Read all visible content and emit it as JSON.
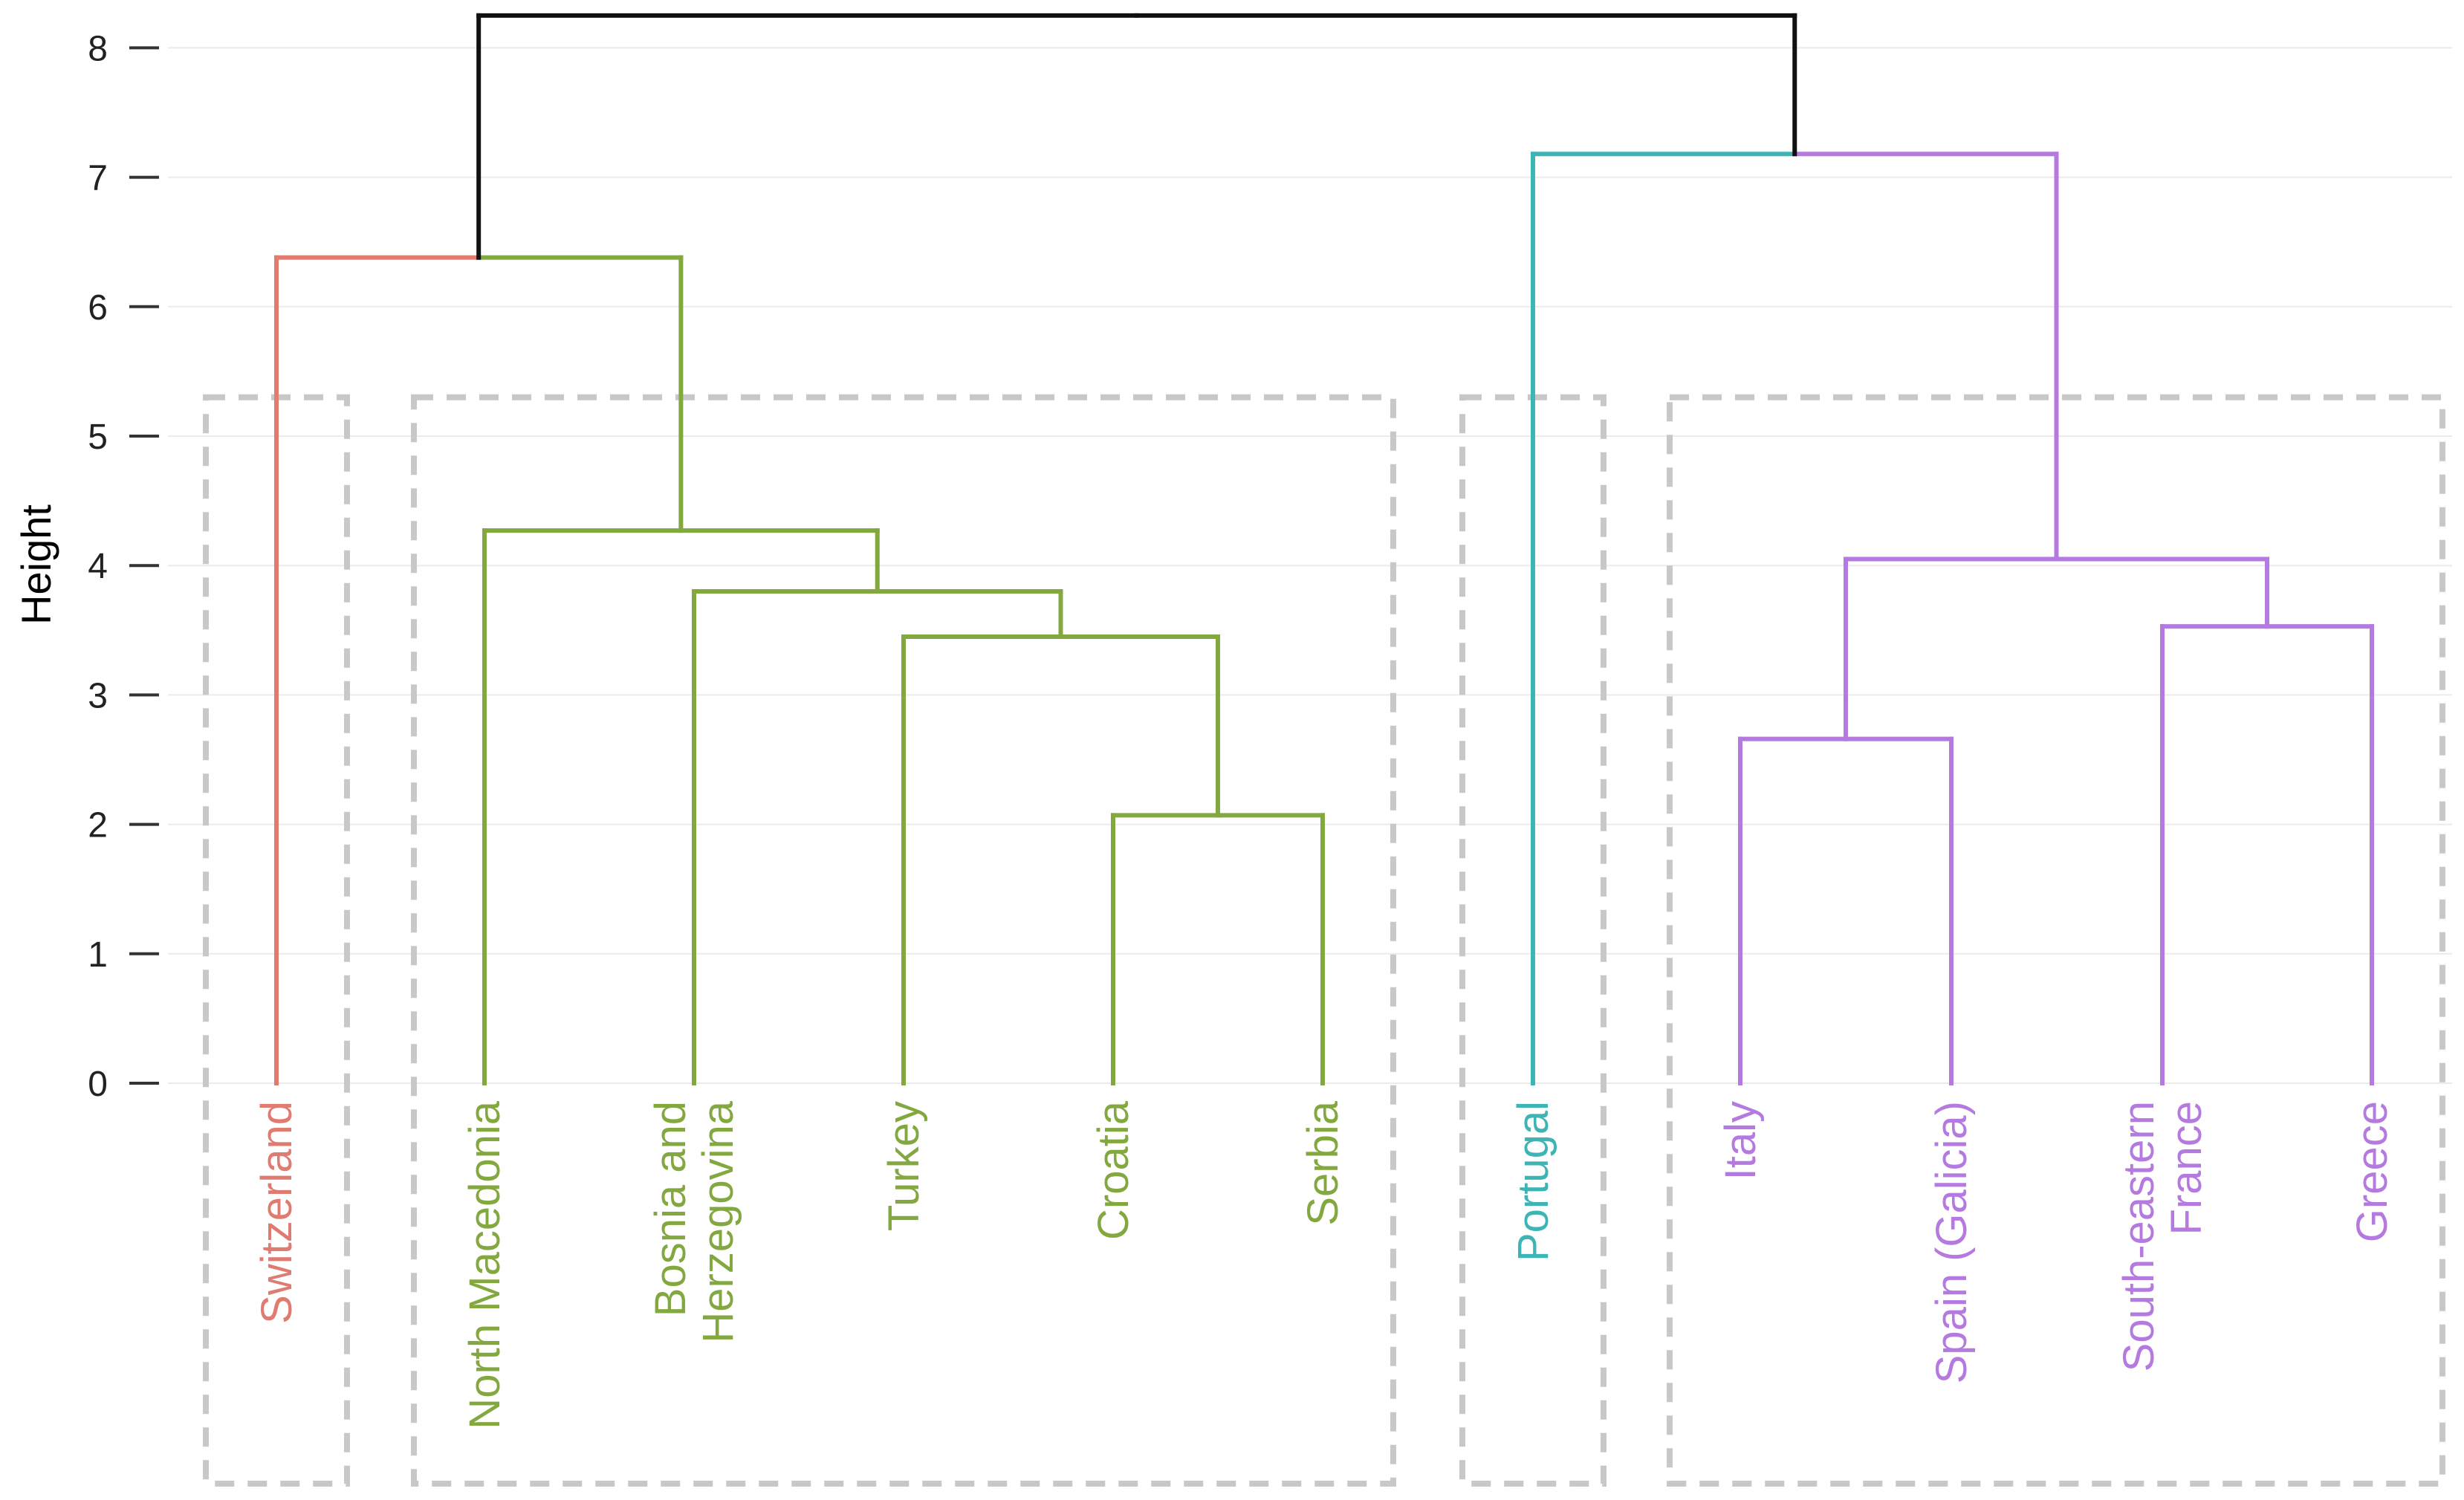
{
  "chart_data": {
    "type": "dendrogram",
    "title": "",
    "xlabel": "",
    "ylabel": "Height",
    "ylim": [
      0,
      8.25
    ],
    "yticks": [
      0,
      1,
      2,
      3,
      4,
      5,
      6,
      7,
      8
    ],
    "grid": true,
    "colors": {
      "Switzerland": "#e07b72",
      "group2": "#84a840",
      "Portugal": "#3fb4b4",
      "group4": "#b57ae0",
      "root": "#111111",
      "cluster_box": "#c8c8c8"
    },
    "leaves": [
      {
        "name": "Switzerland",
        "lines": [
          "Switzerland"
        ],
        "cluster": 1
      },
      {
        "name": "North Macedonia",
        "lines": [
          "North Macedonia"
        ],
        "cluster": 2
      },
      {
        "name": "Bosnia and Herzegovina",
        "lines": [
          "Bosnia and",
          "Herzegovina"
        ],
        "cluster": 2
      },
      {
        "name": "Turkey",
        "lines": [
          "Turkey"
        ],
        "cluster": 2
      },
      {
        "name": "Croatia",
        "lines": [
          "Croatia"
        ],
        "cluster": 2
      },
      {
        "name": "Serbia",
        "lines": [
          "Serbia"
        ],
        "cluster": 2
      },
      {
        "name": "Portugal",
        "lines": [
          "Portugal"
        ],
        "cluster": 3
      },
      {
        "name": "Italy",
        "lines": [
          "Italy"
        ],
        "cluster": 4
      },
      {
        "name": "Spain (Galicia)",
        "lines": [
          "Spain (Galicia)"
        ],
        "cluster": 4
      },
      {
        "name": "South-eastern France",
        "lines": [
          "South-eastern",
          "France"
        ],
        "cluster": 4
      },
      {
        "name": "Greece",
        "lines": [
          "Greece"
        ],
        "cluster": 4
      }
    ],
    "merges": [
      {
        "left": "Croatia",
        "right": "Serbia",
        "height": 2.07,
        "color": "group2"
      },
      {
        "left": "Turkey",
        "right": "Croatia+Serbia",
        "height": 3.45,
        "color": "group2"
      },
      {
        "left": "Bosnia and Herzegovina",
        "right": "Turkey+Croatia+Serbia",
        "height": 3.8,
        "color": "group2"
      },
      {
        "left": "North Macedonia",
        "right": "Bosnia..Serbia",
        "height": 4.27,
        "color": "group2"
      },
      {
        "left": "Switzerland",
        "right": "North Macedonia..Serbia",
        "height": 6.38,
        "color": "mixed"
      },
      {
        "left": "Italy",
        "right": "Spain (Galicia)",
        "height": 2.66,
        "color": "group4"
      },
      {
        "left": "South-eastern France",
        "right": "Greece",
        "height": 3.53,
        "color": "group4"
      },
      {
        "left": "Italy+Spain",
        "right": "France+Greece",
        "height": 4.05,
        "color": "group4"
      },
      {
        "left": "Portugal",
        "right": "Italy..Greece",
        "height": 7.18,
        "color": "mixed"
      },
      {
        "left": "Switzerland..Serbia",
        "right": "Portugal..Greece",
        "height": 8.25,
        "color": "root"
      }
    ],
    "clusters": [
      {
        "id": 1,
        "members": [
          "Switzerland"
        ]
      },
      {
        "id": 2,
        "members": [
          "North Macedonia",
          "Bosnia and Herzegovina",
          "Turkey",
          "Croatia",
          "Serbia"
        ]
      },
      {
        "id": 3,
        "members": [
          "Portugal"
        ]
      },
      {
        "id": 4,
        "members": [
          "Italy",
          "Spain (Galicia)",
          "South-eastern France",
          "Greece"
        ]
      }
    ],
    "cluster_box_top_height": 5.3
  }
}
